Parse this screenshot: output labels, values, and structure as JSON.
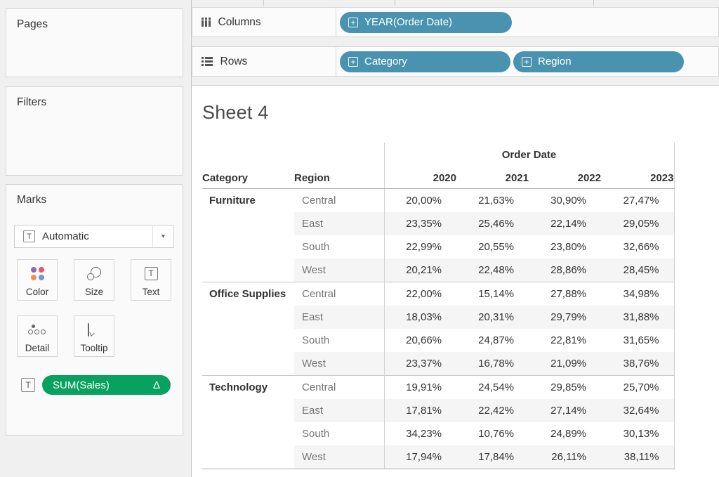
{
  "icons": {
    "plus_box": "+",
    "caret_down": "▾",
    "mark_type_letter": "T",
    "text_encoding_letter": "T"
  },
  "colors": {
    "pill_teal": "#4A93B0",
    "pill_green": "#09A15F",
    "mark_color_dots": [
      "#8c6bb1",
      "#e8566d",
      "#ef8f52",
      "#7993cf"
    ]
  },
  "cards": {
    "pages": {
      "title": "Pages"
    },
    "filters": {
      "title": "Filters"
    },
    "marks": {
      "title": "Marks",
      "mark_type": "Automatic",
      "buttons": [
        {
          "label": "Color"
        },
        {
          "label": "Size"
        },
        {
          "label": "Text"
        },
        {
          "label": "Detail"
        },
        {
          "label": "Tooltip"
        }
      ],
      "text_pill": {
        "label": "SUM(Sales)",
        "delta": "Δ"
      }
    }
  },
  "shelves": {
    "columns": {
      "label": "Columns",
      "pills": [
        {
          "label": "YEAR(Order Date)"
        }
      ]
    },
    "rows": {
      "label": "Rows",
      "pills": [
        {
          "label": "Category"
        },
        {
          "label": "Region"
        }
      ]
    }
  },
  "sheet": {
    "title": "Sheet 4"
  },
  "chart_data": {
    "type": "table",
    "title": "Sheet 4",
    "column_dimension": "Order Date",
    "row_dimensions": [
      "Category",
      "Region"
    ],
    "columns": [
      "2020",
      "2021",
      "2022",
      "2023"
    ],
    "groups": [
      {
        "category": "Furniture",
        "rows": [
          {
            "region": "Central",
            "values": [
              "20,00%",
              "21,63%",
              "30,90%",
              "27,47%"
            ]
          },
          {
            "region": "East",
            "values": [
              "23,35%",
              "25,46%",
              "22,14%",
              "29,05%"
            ]
          },
          {
            "region": "South",
            "values": [
              "22,99%",
              "20,55%",
              "23,80%",
              "32,66%"
            ]
          },
          {
            "region": "West",
            "values": [
              "20,21%",
              "22,48%",
              "28,86%",
              "28,45%"
            ]
          }
        ]
      },
      {
        "category": "Office Supplies",
        "rows": [
          {
            "region": "Central",
            "values": [
              "22,00%",
              "15,14%",
              "27,88%",
              "34,98%"
            ]
          },
          {
            "region": "East",
            "values": [
              "18,03%",
              "20,31%",
              "29,79%",
              "31,88%"
            ]
          },
          {
            "region": "South",
            "values": [
              "20,66%",
              "24,87%",
              "22,81%",
              "31,65%"
            ]
          },
          {
            "region": "West",
            "values": [
              "23,37%",
              "16,78%",
              "21,09%",
              "38,76%"
            ]
          }
        ]
      },
      {
        "category": "Technology",
        "rows": [
          {
            "region": "Central",
            "values": [
              "19,91%",
              "24,54%",
              "29,85%",
              "25,70%"
            ]
          },
          {
            "region": "East",
            "values": [
              "17,81%",
              "22,42%",
              "27,14%",
              "32,64%"
            ]
          },
          {
            "region": "South",
            "values": [
              "34,23%",
              "10,76%",
              "24,89%",
              "30,13%"
            ]
          },
          {
            "region": "West",
            "values": [
              "17,94%",
              "17,84%",
              "26,11%",
              "38,11%"
            ]
          }
        ]
      }
    ]
  }
}
